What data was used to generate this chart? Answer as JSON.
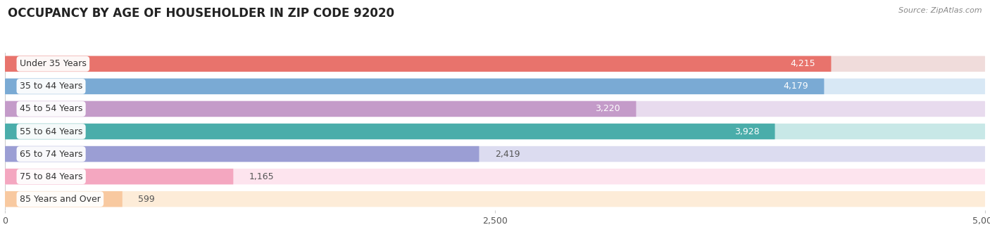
{
  "title": "OCCUPANCY BY AGE OF HOUSEHOLDER IN ZIP CODE 92020",
  "source": "Source: ZipAtlas.com",
  "categories": [
    "Under 35 Years",
    "35 to 44 Years",
    "45 to 54 Years",
    "55 to 64 Years",
    "65 to 74 Years",
    "75 to 84 Years",
    "85 Years and Over"
  ],
  "values": [
    4215,
    4179,
    3220,
    3928,
    2419,
    1165,
    599
  ],
  "bar_colors": [
    "#E8736C",
    "#7AAAD4",
    "#C49BC9",
    "#4AADAA",
    "#9B9ED4",
    "#F4A7C0",
    "#F8C9A0"
  ],
  "bar_bg_colors": [
    "#F0DCDB",
    "#D8E8F5",
    "#E8DBEE",
    "#C8E8E7",
    "#DCDCF0",
    "#FDE4EE",
    "#FDECD8"
  ],
  "value_inside": [
    true,
    true,
    true,
    true,
    false,
    false,
    false
  ],
  "value_colors_inside": [
    "white",
    "white",
    "white",
    "white",
    "#555555",
    "#555555",
    "#555555"
  ],
  "xlim": [
    0,
    5000
  ],
  "xticks": [
    0,
    2500,
    5000
  ],
  "title_fontsize": 12,
  "label_fontsize": 9,
  "value_fontsize": 9,
  "background_color": "#ffffff"
}
